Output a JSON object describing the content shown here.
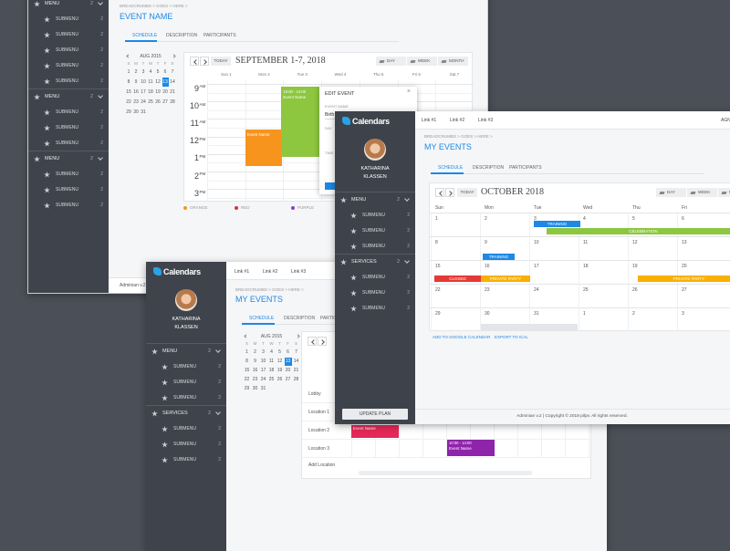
{
  "back_window": {
    "sidebar_sections": [
      {
        "label": "MENU",
        "count": 2,
        "items": [
          {
            "label": "SUBMENU",
            "count": 2
          },
          {
            "label": "SUBMENU",
            "count": 2
          },
          {
            "label": "SUBMENU",
            "count": 2
          },
          {
            "label": "SUBMENU",
            "count": 2
          },
          {
            "label": "SUBMENU",
            "count": 2
          }
        ]
      },
      {
        "label": "MENU",
        "count": 2,
        "items": [
          {
            "label": "SUBMENU",
            "count": 2
          },
          {
            "label": "SUBMENU",
            "count": 2
          },
          {
            "label": "SUBMENU",
            "count": 2
          }
        ]
      },
      {
        "label": "MENU",
        "count": 2,
        "items": [
          {
            "label": "SUBMENU",
            "count": 2
          },
          {
            "label": "SUBMENU",
            "count": 2
          },
          {
            "label": "SUBMENU",
            "count": 2
          }
        ]
      }
    ],
    "breadcrumbs": "BREADCRUMBS > GOES > HERE >",
    "title": "EVENT NAME",
    "tabs": [
      "SCHEDULE",
      "DESCRIPTION",
      "PARTICIPANTS"
    ],
    "mini_calendar": {
      "month": "AUG 2015",
      "weekdays": [
        "S",
        "M",
        "T",
        "W",
        "T",
        "F",
        "S"
      ],
      "days": [
        1,
        2,
        3,
        4,
        5,
        6,
        7,
        8,
        9,
        10,
        11,
        12,
        13,
        14,
        15,
        16,
        17,
        18,
        19,
        20,
        21,
        22,
        23,
        24,
        25,
        26,
        27,
        28,
        29,
        30,
        31
      ],
      "selected": 13
    },
    "today": "TODAY",
    "range_title": "SEPTEMBER 1-7, 2018",
    "views": [
      "DAY",
      "WEEK",
      "MONTH"
    ],
    "day_headers": [
      "Sun 1",
      "Mon 2",
      "Tue 3",
      "Wed 4",
      "Thu 5",
      "Fri 6",
      "Sat 7"
    ],
    "hours": [
      {
        "hour": 9,
        "suffix": "AM"
      },
      {
        "hour": 10,
        "suffix": "AM"
      },
      {
        "hour": 11,
        "suffix": "AM"
      },
      {
        "hour": 12,
        "suffix": "PM"
      },
      {
        "hour": 1,
        "suffix": "PM"
      },
      {
        "hour": 2,
        "suffix": "PM"
      },
      {
        "hour": 3,
        "suffix": "PM"
      }
    ],
    "events": [
      {
        "label": "Event Name",
        "color": "#f7941d"
      },
      {
        "time": "10:00 - 14:00",
        "label": "Event Name",
        "color": "#8dc63f"
      }
    ],
    "edit_popup": {
      "title": "EDIT EVENT",
      "close": "×",
      "field_label": "EVENT NAME",
      "field_value": "Birth",
      "day_label": "DAY",
      "time_label": "TIME"
    },
    "legend": [
      {
        "label": "ORANGE",
        "color": "#f7941d"
      },
      {
        "label": "RED",
        "color": "#e5283f"
      },
      {
        "label": "PURPLE",
        "color": "#8e3fc2"
      }
    ],
    "footer": "Adminian v.2 |"
  },
  "front_window": {
    "logo": "Calendars",
    "links": [
      "Link #1",
      "Link #2",
      "Link #3"
    ],
    "profile": {
      "first_name": "KATHARINA",
      "last_name": "KLASSEN"
    },
    "sidebar_sections": [
      {
        "label": "MENU",
        "count": 2,
        "items": [
          {
            "label": "SUBMENU",
            "count": 2
          },
          {
            "label": "SUBMENU",
            "count": 2
          },
          {
            "label": "SUBMENU",
            "count": 2
          }
        ]
      },
      {
        "label": "SERVICES",
        "count": 2,
        "items": [
          {
            "label": "SUBMENU",
            "count": 2
          },
          {
            "label": "SUBMENU",
            "count": 2
          },
          {
            "label": "SUBMENU",
            "count": 2
          }
        ]
      }
    ],
    "breadcrumbs": "BREADCRUMBS > GOES > HERE >",
    "title": "MY EVENTS",
    "tabs": [
      "SCHEDULE",
      "DESCRIPTION",
      "PARTICIPANTS"
    ],
    "mini_calendar": {
      "month": "AUG 2015",
      "weekdays": [
        "S",
        "M",
        "T",
        "W",
        "T",
        "F",
        "S"
      ],
      "days": [
        1,
        2,
        3,
        4,
        5,
        6,
        7,
        8,
        9,
        10,
        11,
        12,
        13,
        14,
        15,
        16,
        17,
        18,
        19,
        20,
        21,
        22,
        23,
        24,
        25,
        26,
        27,
        28,
        29,
        30,
        31
      ],
      "selected": 13
    },
    "locations": [
      "Lobby",
      "Location 1",
      "Location 2",
      "Location 3"
    ],
    "add_location": "Add Location",
    "events": [
      {
        "label": "Event Name",
        "color": "#e5285a"
      },
      {
        "time": "10:00 - 14:00",
        "label": "Event Name",
        "color": "#8e24aa"
      }
    ]
  },
  "right_window": {
    "logo": "Calendars",
    "links": [
      "Link #1",
      "Link #2",
      "Link #3"
    ],
    "agenda": "AGN",
    "profile": {
      "first_name": "KATHARINA",
      "last_name": "KLASSEN"
    },
    "sidebar_sections": [
      {
        "label": "MENU",
        "count": 2,
        "items": [
          {
            "label": "SUBMENU",
            "count": 2
          },
          {
            "label": "SUBMENU",
            "count": 2
          },
          {
            "label": "SUBMENU",
            "count": 2
          }
        ]
      },
      {
        "label": "SERVICES",
        "count": 2,
        "items": [
          {
            "label": "SUBMENU",
            "count": 2
          },
          {
            "label": "SUBMENU",
            "count": 2
          },
          {
            "label": "SUBMENU",
            "count": 2
          }
        ]
      }
    ],
    "update_plan": "UPDATE PLAN",
    "breadcrumbs": "BREADCRUMBS > GOES > HERE >",
    "title": "MY EVENTS",
    "tabs": [
      "SCHEDULE",
      "DESCRIPTION",
      "PARTICIPANTS"
    ],
    "today": "TODAY",
    "month_title": "OCTOBER 2018",
    "views": [
      "DAY",
      "WEEK",
      "MONTH"
    ],
    "weekdays": [
      "Sun",
      "Mon",
      "Tue",
      "Wed",
      "Thu",
      "Fri"
    ],
    "weeks": [
      [
        1,
        2,
        3,
        4,
        5,
        6
      ],
      [
        8,
        9,
        10,
        11,
        12,
        13
      ],
      [
        15,
        16,
        17,
        18,
        19,
        20
      ],
      [
        22,
        23,
        24,
        25,
        26,
        27
      ],
      [
        29,
        30,
        31,
        1,
        2,
        3
      ]
    ],
    "events": [
      {
        "label": "TRAINING",
        "color": "#1e88e5"
      },
      {
        "label": "CELEBRATION",
        "color": "#8dc63f"
      },
      {
        "label": "TRAINING",
        "color": "#1e88e5"
      },
      {
        "label": "CLOSED",
        "color": "#e53935"
      },
      {
        "label": "PRIVATE PARTY",
        "color": "#f9b000"
      },
      {
        "label": "PRIVATE PARTY",
        "color": "#f9b000"
      }
    ],
    "actions": [
      "ADD TO GOOGLE CALENDAR",
      "EXPORT TO ICAL"
    ],
    "footer": "Adminian v.2 | Copyright © 2018 pilpv. All rights reserved."
  }
}
